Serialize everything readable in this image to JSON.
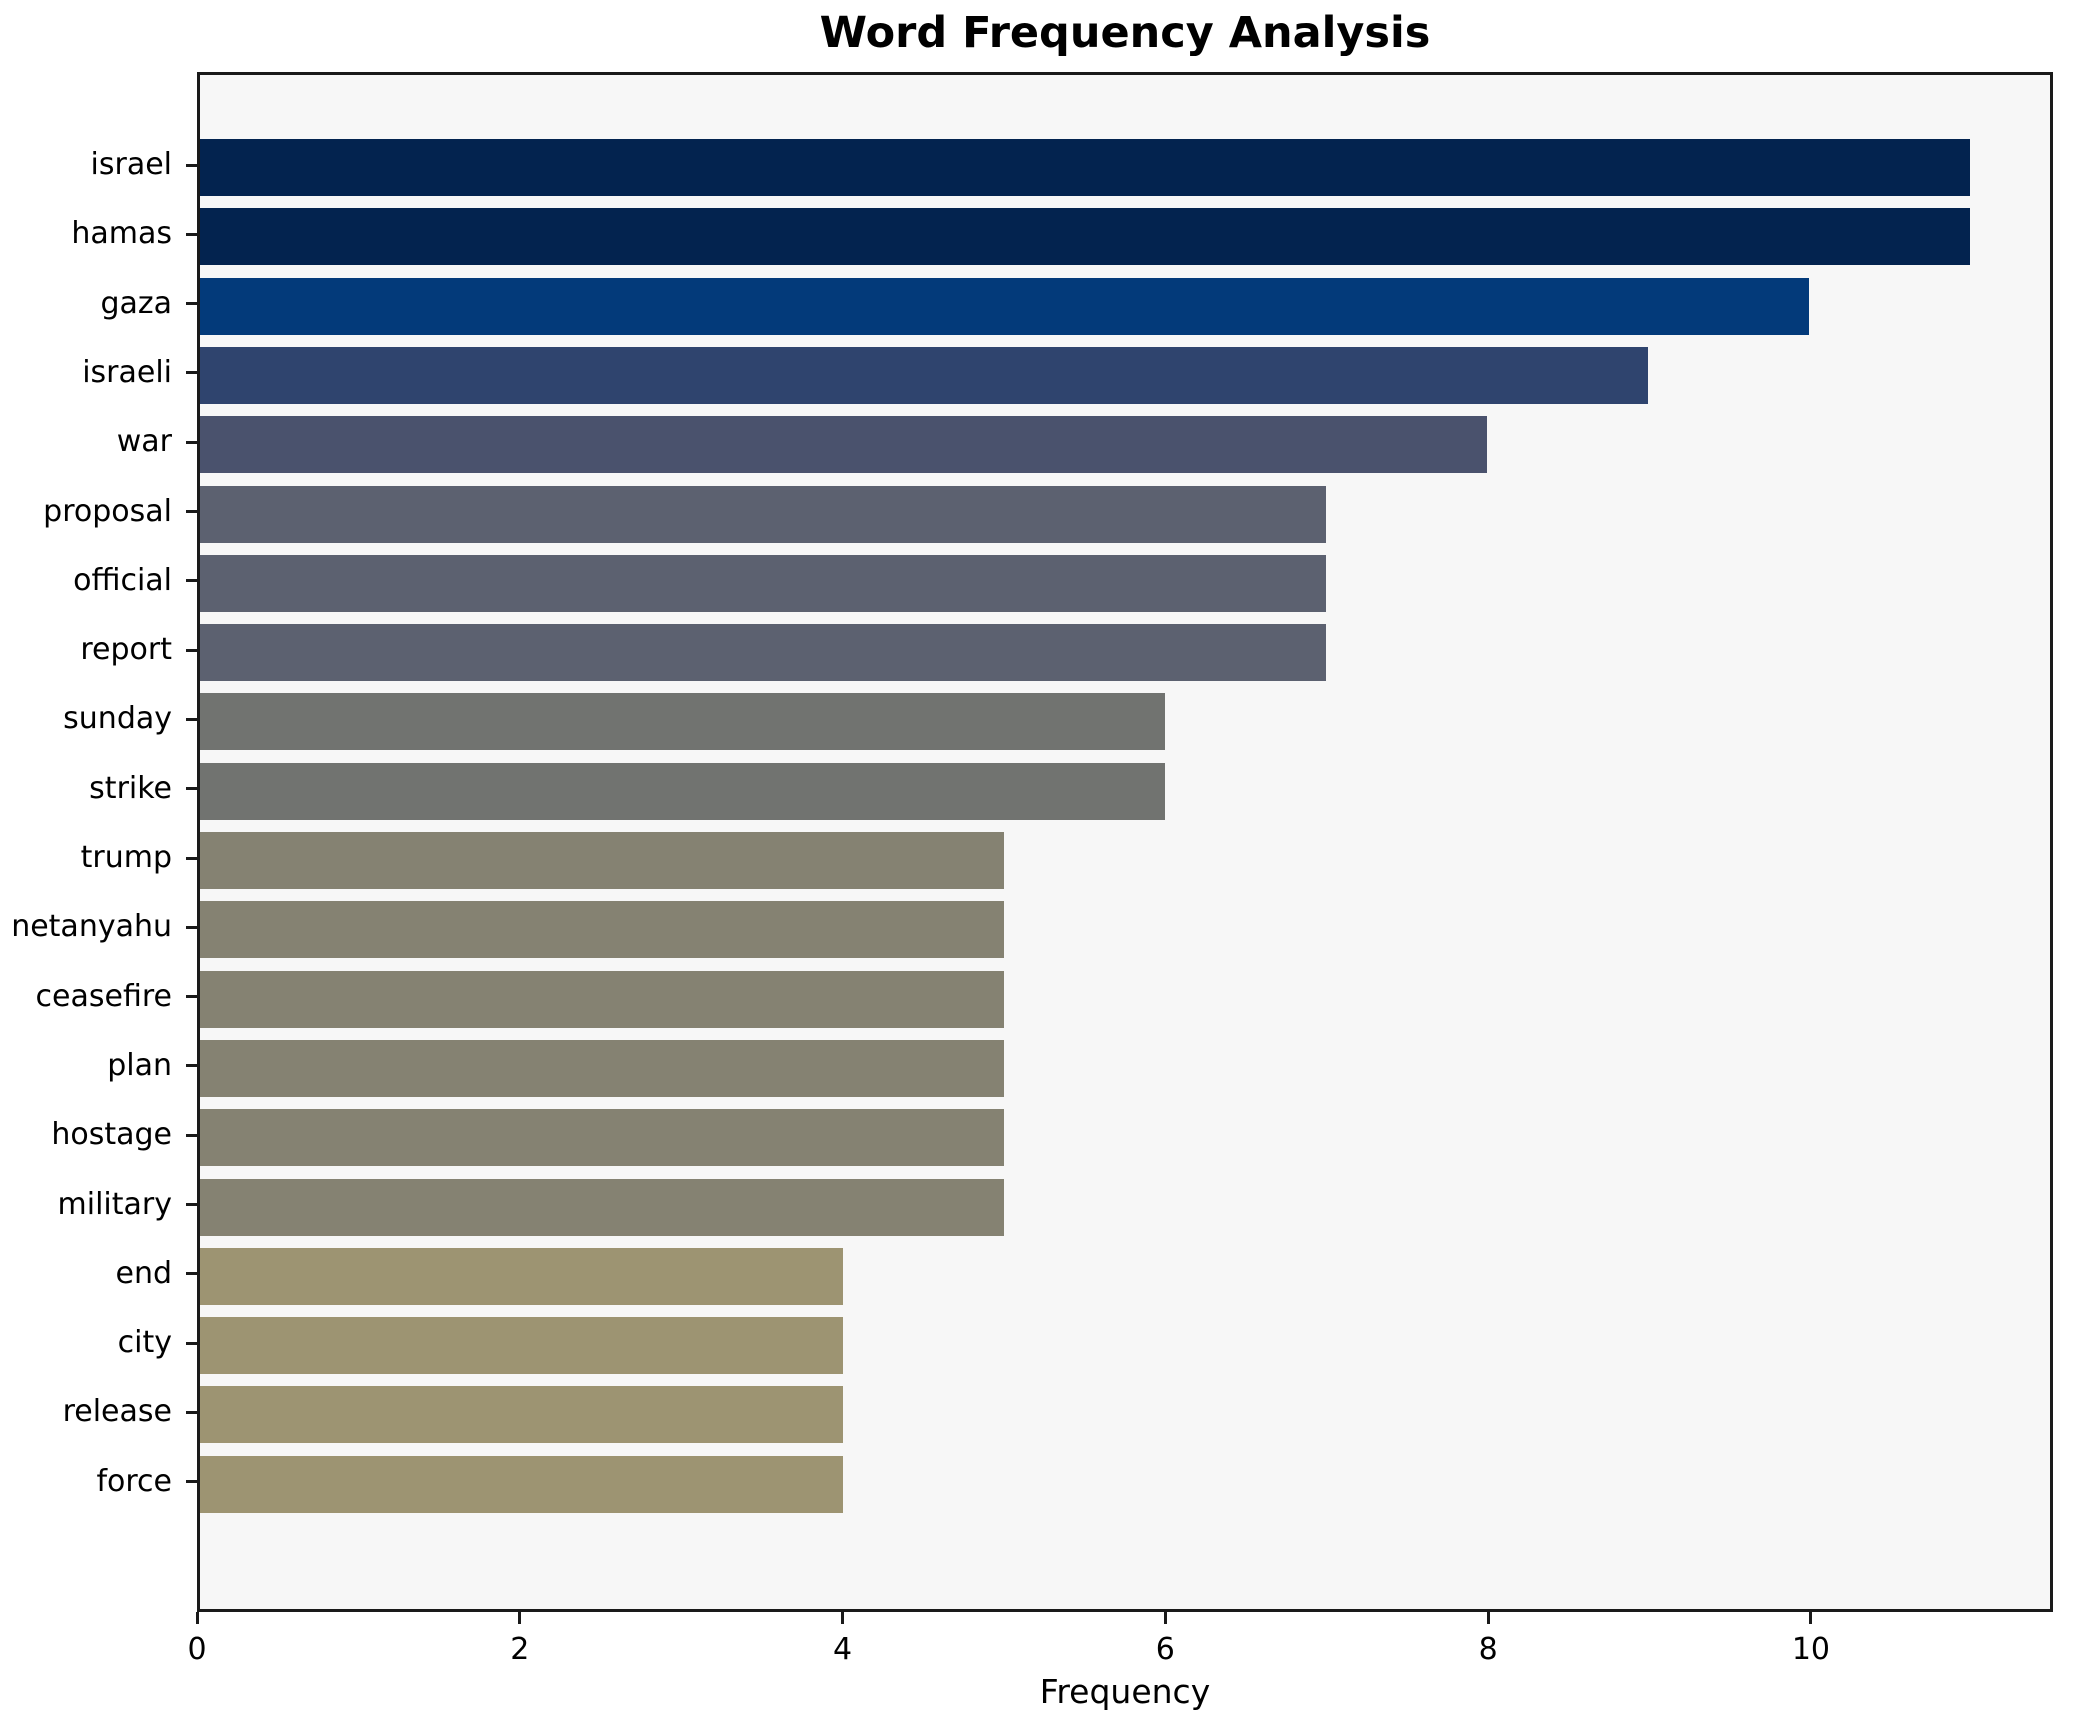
{
  "figure": {
    "background": "#ffffff",
    "plot_background": "#f7f7f7",
    "spine_color": "#1a1a1a"
  },
  "chart_data": {
    "type": "bar",
    "orientation": "horizontal",
    "title": "Word Frequency Analysis",
    "xlabel": "Frequency",
    "ylabel": "",
    "xlim": [
      0,
      11.5
    ],
    "xticks": [
      0,
      2,
      4,
      6,
      8,
      10
    ],
    "grid": false,
    "legend": false,
    "categories": [
      "israel",
      "hamas",
      "gaza",
      "israeli",
      "war",
      "proposal",
      "official",
      "report",
      "sunday",
      "strike",
      "trump",
      "netanyahu",
      "ceasefire",
      "plan",
      "hostage",
      "military",
      "end",
      "city",
      "release",
      "force"
    ],
    "values": [
      11,
      11,
      10,
      9,
      8,
      7,
      7,
      7,
      6,
      6,
      5,
      5,
      5,
      5,
      5,
      5,
      4,
      4,
      4,
      4
    ],
    "bar_colors": [
      "#03234f",
      "#03234f",
      "#033a7a",
      "#2f446e",
      "#4a526d",
      "#5c6170",
      "#5c6170",
      "#5c6170",
      "#717370",
      "#717370",
      "#858272",
      "#858272",
      "#858272",
      "#858272",
      "#858272",
      "#858272",
      "#9d9472",
      "#9d9472",
      "#9d9472",
      "#9d9472"
    ]
  }
}
